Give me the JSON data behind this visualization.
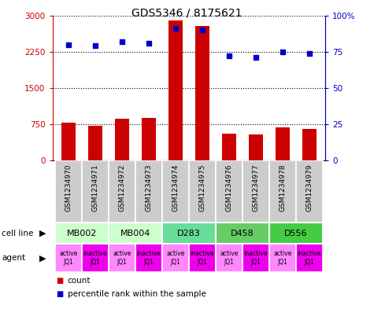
{
  "title": "GDS5346 / 8175621",
  "samples": [
    "GSM1234970",
    "GSM1234971",
    "GSM1234972",
    "GSM1234973",
    "GSM1234974",
    "GSM1234975",
    "GSM1234976",
    "GSM1234977",
    "GSM1234978",
    "GSM1234979"
  ],
  "counts": [
    780,
    720,
    870,
    880,
    2900,
    2780,
    560,
    540,
    680,
    660
  ],
  "percentiles": [
    80,
    79,
    82,
    81,
    91,
    90,
    72,
    71,
    75,
    74
  ],
  "cell_lines": [
    {
      "name": "MB002",
      "span": [
        0,
        2
      ],
      "color": "#ccffcc"
    },
    {
      "name": "MB004",
      "span": [
        2,
        4
      ],
      "color": "#ccffcc"
    },
    {
      "name": "D283",
      "span": [
        4,
        6
      ],
      "color": "#66dd99"
    },
    {
      "name": "D458",
      "span": [
        6,
        8
      ],
      "color": "#66cc66"
    },
    {
      "name": "D556",
      "span": [
        8,
        10
      ],
      "color": "#44cc44"
    }
  ],
  "agents": [
    "active\nJQ1",
    "inactive\nJQ1",
    "active\nJQ1",
    "inactive\nJQ1",
    "active\nJQ1",
    "inactive\nJQ1",
    "active\nJQ1",
    "inactive\nJQ1",
    "active\nJQ1",
    "inactive\nJQ1"
  ],
  "agent_active_color": "#ff88ff",
  "agent_inactive_color": "#ee00ee",
  "bar_color": "#cc0000",
  "dot_color": "#0000cc",
  "ylim_left": [
    0,
    3000
  ],
  "yticks_left": [
    0,
    750,
    1500,
    2250,
    3000
  ],
  "ytick_labels_left": [
    "0",
    "750",
    "1500",
    "2250",
    "3000"
  ],
  "ylim_right": [
    0,
    100
  ],
  "yticks_right": [
    0,
    25,
    50,
    75,
    100
  ],
  "ytick_labels_right": [
    "0",
    "25",
    "50",
    "75",
    "100%"
  ],
  "sample_box_color": "#cccccc",
  "bar_width": 0.55
}
